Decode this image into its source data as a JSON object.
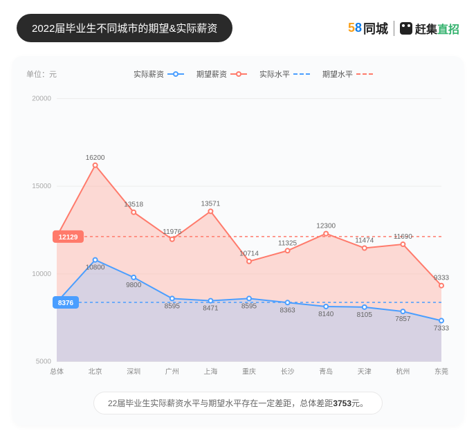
{
  "header": {
    "title": "2022届毕业生不同城市的期望&实际薪资",
    "logo58_5": "5",
    "logo58_8": "8",
    "logo58_tc": "同城",
    "logoGJ_1": "赶集",
    "logoGJ_2": "直招"
  },
  "chart": {
    "unit_label": "单位：元",
    "legend": {
      "actual": "实际薪资",
      "expected": "期望薪资",
      "actual_avg": "实际水平",
      "expected_avg": "期望水平"
    },
    "ylim": [
      5000,
      20000
    ],
    "ytick_step": 5000,
    "yticks": [
      "5000",
      "10000",
      "15000",
      "20000"
    ],
    "categories": [
      "总体",
      "北京",
      "深圳",
      "广州",
      "上海",
      "重庆",
      "长沙",
      "青岛",
      "天津",
      "杭州",
      "东莞"
    ],
    "actual_values": [
      8376,
      10800,
      9800,
      8595,
      8471,
      8595,
      8363,
      8140,
      8105,
      7857,
      7333
    ],
    "expected_values": [
      12129,
      16200,
      13518,
      11976,
      13571,
      10714,
      11325,
      12300,
      11474,
      11690,
      9333
    ],
    "actual_avg_line": 8376,
    "expected_avg_line": 12129,
    "badge_actual": "8376",
    "badge_expected": "12129",
    "colors": {
      "actual_line": "#4a9eff",
      "actual_fill": "#93c6ff",
      "actual_fill_opacity": 0.35,
      "expected_line": "#ff7a6b",
      "expected_fill": "#ffb0a5",
      "expected_fill_opacity": 0.45,
      "grid": "#ececec",
      "axis_text": "#aaaaaa",
      "cat_text": "#888888",
      "label_text": "#666666",
      "badge_actual_bg": "#4a9eff",
      "badge_expected_bg": "#ff7a6b",
      "bg": "#fafbfc"
    },
    "marker": {
      "radius": 3,
      "stroke_width": 2
    },
    "line_width": 2
  },
  "footer": {
    "prefix": "22届毕业生实际薪资水平与期望水平存在一定差距，总体差距",
    "gap_value": "3753",
    "suffix": "元。"
  }
}
